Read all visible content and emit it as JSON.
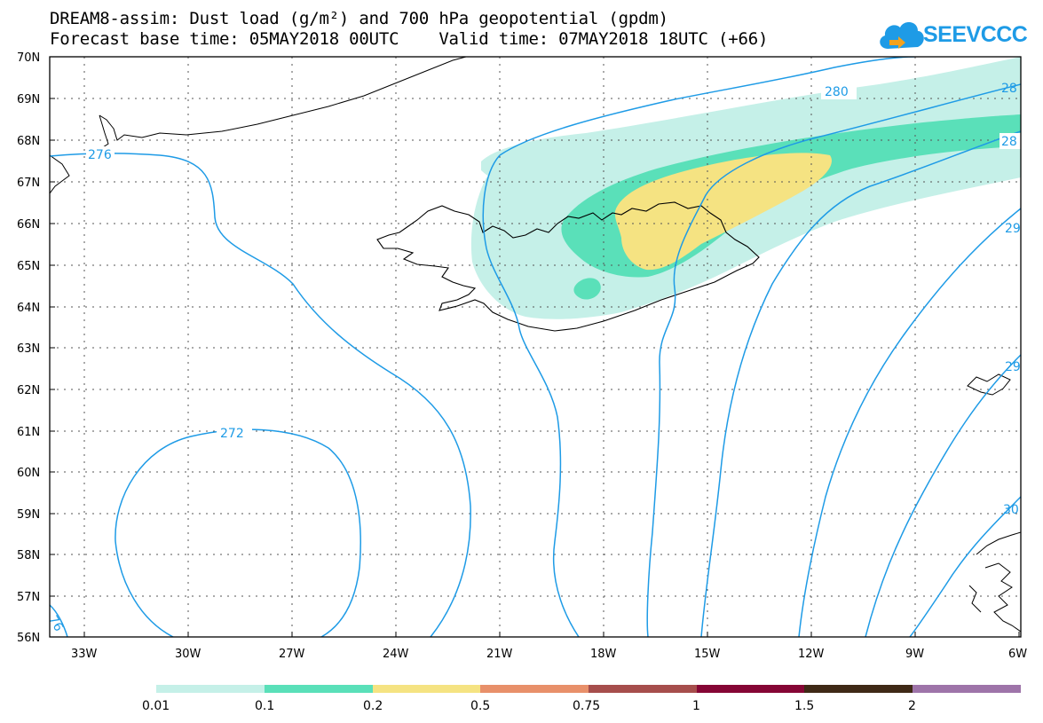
{
  "title": {
    "line1": "DREAM8-assim: Dust load (g/m²) and 700 hPa geopotential (gpdm)",
    "line2": "Forecast base time: 05MAY2018 00UTC    Valid time: 07MAY2018 18UTC (+66)"
  },
  "logo": {
    "text": "SEEVCCC",
    "icon": "cloud-icon"
  },
  "map": {
    "lat_labels": [
      "70N",
      "69N",
      "68N",
      "67N",
      "66N",
      "65N",
      "64N",
      "63N",
      "62N",
      "61N",
      "60N",
      "59N",
      "58N",
      "57N",
      "56N"
    ],
    "lon_labels": [
      "33W",
      "30W",
      "27W",
      "24W",
      "21W",
      "18W",
      "15W",
      "12W",
      "9W",
      "6W"
    ],
    "contour_labels": [
      "276",
      "272",
      "280",
      "28",
      "28",
      "29",
      "29",
      "30",
      "76"
    ],
    "colors": {
      "contour": "#1e9be6",
      "coast": "#000000",
      "dust_0_01": "#c5f0e8",
      "dust_0_1": "#5ae0b9",
      "dust_0_2": "#f5e382"
    }
  },
  "legend": {
    "labels": [
      "0.01",
      "0.1",
      "0.2",
      "0.5",
      "0.75",
      "1",
      "1.5",
      "2"
    ],
    "colors": [
      "#c5f0e8",
      "#5ae0b9",
      "#f5e382",
      "#e8906a",
      "#a64e4c",
      "#850635",
      "#3f2916",
      "#9e74a9"
    ]
  }
}
